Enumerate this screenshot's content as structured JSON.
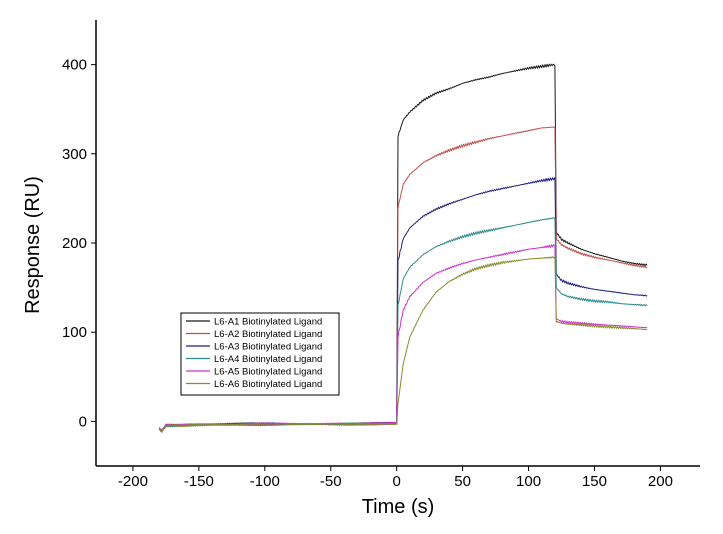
{
  "chart_data": {
    "type": "line",
    "title": "",
    "xlabel": "Time (s)",
    "ylabel": "Response (RU)",
    "xlim": [
      -228,
      230
    ],
    "ylim": [
      -50,
      450
    ],
    "x_ticks": [
      -200,
      -150,
      -100,
      -50,
      0,
      50,
      100,
      150,
      200
    ],
    "x_tick_labels": [
      "-200",
      "-150",
      "-100",
      "-50",
      "0",
      "50",
      "100",
      "150",
      "200"
    ],
    "y_ticks": [
      0,
      100,
      200,
      300,
      400
    ],
    "y_tick_labels": [
      "0",
      "100",
      "200",
      "300",
      "400"
    ],
    "grid": false,
    "legend_position": "lower-left",
    "association_start": 0,
    "dissociation_start": 120,
    "series": [
      {
        "name": "L6-A1 Biotinylated Ligand",
        "color": "#1a1a1a",
        "points": [
          [
            -180,
            -8
          ],
          [
            -178,
            -10
          ],
          [
            -175,
            -4
          ],
          [
            -150,
            -3
          ],
          [
            -100,
            -3
          ],
          [
            -50,
            -3
          ],
          [
            0,
            -2
          ],
          [
            1,
            320
          ],
          [
            5,
            338
          ],
          [
            10,
            347
          ],
          [
            20,
            360
          ],
          [
            30,
            368
          ],
          [
            40,
            373
          ],
          [
            50,
            379
          ],
          [
            60,
            383
          ],
          [
            70,
            386
          ],
          [
            80,
            390
          ],
          [
            90,
            393
          ],
          [
            100,
            396
          ],
          [
            110,
            398
          ],
          [
            119,
            400
          ],
          [
            120,
            400
          ],
          [
            121,
            212
          ],
          [
            125,
            204
          ],
          [
            130,
            200
          ],
          [
            140,
            193
          ],
          [
            150,
            188
          ],
          [
            160,
            184
          ],
          [
            170,
            180
          ],
          [
            180,
            177
          ],
          [
            190,
            175
          ]
        ]
      },
      {
        "name": "L6-A2 Biotinylated Ligand",
        "color": "#c0504d",
        "points": [
          [
            -180,
            -9
          ],
          [
            -178,
            -11
          ],
          [
            -175,
            -5
          ],
          [
            -150,
            -4
          ],
          [
            -100,
            -3
          ],
          [
            -50,
            -3
          ],
          [
            0,
            -3
          ],
          [
            1,
            240
          ],
          [
            5,
            266
          ],
          [
            10,
            277
          ],
          [
            20,
            290
          ],
          [
            30,
            298
          ],
          [
            40,
            304
          ],
          [
            50,
            309
          ],
          [
            60,
            313
          ],
          [
            70,
            317
          ],
          [
            80,
            320
          ],
          [
            90,
            323
          ],
          [
            100,
            326
          ],
          [
            110,
            329
          ],
          [
            119,
            330
          ],
          [
            120,
            330
          ],
          [
            121,
            205
          ],
          [
            125,
            198
          ],
          [
            130,
            194
          ],
          [
            140,
            188
          ],
          [
            150,
            184
          ],
          [
            160,
            181
          ],
          [
            170,
            178
          ],
          [
            180,
            175
          ],
          [
            190,
            173
          ]
        ]
      },
      {
        "name": "L6-A3 Biotinylated Ligand",
        "color": "#1f1f7a",
        "points": [
          [
            -180,
            -8
          ],
          [
            -178,
            -10
          ],
          [
            -175,
            -4
          ],
          [
            -150,
            -3
          ],
          [
            -100,
            -3
          ],
          [
            -50,
            -3
          ],
          [
            0,
            -2
          ],
          [
            1,
            180
          ],
          [
            5,
            205
          ],
          [
            10,
            217
          ],
          [
            20,
            230
          ],
          [
            30,
            238
          ],
          [
            40,
            244
          ],
          [
            50,
            249
          ],
          [
            60,
            254
          ],
          [
            70,
            258
          ],
          [
            80,
            261
          ],
          [
            90,
            264
          ],
          [
            100,
            267
          ],
          [
            110,
            270
          ],
          [
            119,
            272
          ],
          [
            120,
            272
          ],
          [
            121,
            165
          ],
          [
            125,
            158
          ],
          [
            130,
            155
          ],
          [
            140,
            151
          ],
          [
            150,
            148
          ],
          [
            160,
            146
          ],
          [
            170,
            144
          ],
          [
            180,
            142
          ],
          [
            190,
            141
          ]
        ]
      },
      {
        "name": "L6-A4 Biotinylated Ligand",
        "color": "#2e8b8b",
        "points": [
          [
            -180,
            -9
          ],
          [
            -178,
            -11
          ],
          [
            -175,
            -5
          ],
          [
            -150,
            -4
          ],
          [
            -100,
            -3
          ],
          [
            -50,
            -3
          ],
          [
            0,
            -3
          ],
          [
            1,
            130
          ],
          [
            5,
            160
          ],
          [
            10,
            173
          ],
          [
            20,
            187
          ],
          [
            30,
            196
          ],
          [
            40,
            202
          ],
          [
            50,
            207
          ],
          [
            60,
            211
          ],
          [
            70,
            214
          ],
          [
            80,
            217
          ],
          [
            90,
            220
          ],
          [
            100,
            223
          ],
          [
            110,
            226
          ],
          [
            119,
            228
          ],
          [
            120,
            228
          ],
          [
            121,
            150
          ],
          [
            125,
            143
          ],
          [
            130,
            140
          ],
          [
            140,
            137
          ],
          [
            150,
            135
          ],
          [
            160,
            134
          ],
          [
            170,
            132
          ],
          [
            180,
            131
          ],
          [
            190,
            130
          ]
        ]
      },
      {
        "name": "L6-A5 Biotinylated Ligand",
        "color": "#cc33cc",
        "points": [
          [
            -180,
            -8
          ],
          [
            -178,
            -10
          ],
          [
            -175,
            -4
          ],
          [
            -150,
            -3
          ],
          [
            -100,
            -3
          ],
          [
            -50,
            -3
          ],
          [
            0,
            -2
          ],
          [
            1,
            95
          ],
          [
            5,
            125
          ],
          [
            10,
            140
          ],
          [
            20,
            156
          ],
          [
            30,
            166
          ],
          [
            40,
            172
          ],
          [
            50,
            177
          ],
          [
            60,
            181
          ],
          [
            70,
            184
          ],
          [
            80,
            187
          ],
          [
            90,
            190
          ],
          [
            100,
            193
          ],
          [
            110,
            195
          ],
          [
            119,
            197
          ],
          [
            120,
            197
          ],
          [
            121,
            115
          ],
          [
            125,
            112
          ],
          [
            130,
            111
          ],
          [
            140,
            110
          ],
          [
            150,
            109
          ],
          [
            160,
            108
          ],
          [
            170,
            107
          ],
          [
            180,
            106
          ],
          [
            190,
            105
          ]
        ]
      },
      {
        "name": "L6-A6 Biotinylated Ligand",
        "color": "#8a8a2e",
        "points": [
          [
            -180,
            -9
          ],
          [
            -178,
            -11
          ],
          [
            -175,
            -5
          ],
          [
            -150,
            -4
          ],
          [
            -100,
            -3
          ],
          [
            -50,
            -3
          ],
          [
            0,
            -3
          ],
          [
            1,
            20
          ],
          [
            5,
            65
          ],
          [
            10,
            95
          ],
          [
            20,
            125
          ],
          [
            30,
            145
          ],
          [
            40,
            157
          ],
          [
            50,
            165
          ],
          [
            60,
            171
          ],
          [
            70,
            175
          ],
          [
            80,
            178
          ],
          [
            90,
            180
          ],
          [
            100,
            182
          ],
          [
            110,
            183
          ],
          [
            119,
            184
          ],
          [
            120,
            184
          ],
          [
            121,
            112
          ],
          [
            125,
            110
          ],
          [
            130,
            109
          ],
          [
            140,
            108
          ],
          [
            150,
            107
          ],
          [
            160,
            106
          ],
          [
            170,
            105
          ],
          [
            180,
            104
          ],
          [
            190,
            103
          ]
        ]
      }
    ]
  }
}
